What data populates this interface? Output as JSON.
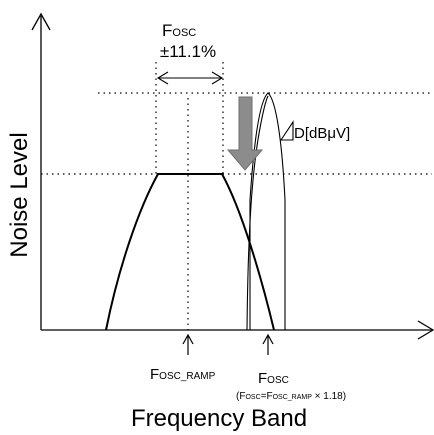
{
  "axes": {
    "x_label": "Frequency Band",
    "y_label": "Noise Level"
  },
  "top_label": {
    "f_main": "F",
    "f_sub": "OSC",
    "tolerance": "±11.1%"
  },
  "attenuation": {
    "label": "D[dBμV]"
  },
  "markers": {
    "ramp": {
      "main": "F",
      "sub": "OSC_RAMP"
    },
    "osc": {
      "main": "F",
      "sub": "OSC"
    },
    "formula": {
      "open": "(F",
      "sub1": "OSC",
      "eq": "=F",
      "sub2": "OSC_RAMP",
      "tail": " × 1.18)"
    }
  },
  "colors": {
    "line": "#000000",
    "arrow_fill": "#8c8c8c",
    "arrow_stroke": "#6e6e6e"
  }
}
